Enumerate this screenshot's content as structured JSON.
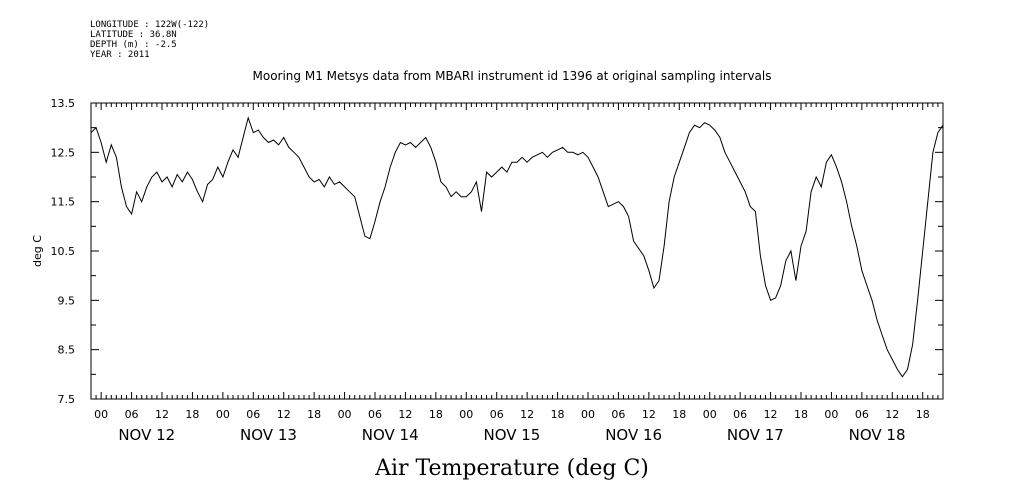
{
  "header": {
    "longitude": "LONGITUDE : 122W(-122)",
    "latitude": "LATITUDE : 36.8N",
    "depth": "DEPTH (m) : -2.5",
    "year": "YEAR : 2011"
  },
  "chart_data": {
    "type": "line",
    "title": "Mooring M1 Metsys data from MBARI instrument id 1396 at original sampling intervals",
    "xlabel": "Air Temperature (deg C)",
    "ylabel": "deg C",
    "ylim": [
      7.5,
      13.5
    ],
    "xlim": [
      -2,
      166
    ],
    "x_unit": "hours since NOV 12 00",
    "y_ticks": [
      "13.5",
      "12.5",
      "11.5",
      "10.5",
      "9.5",
      "8.5",
      "7.5"
    ],
    "x_hour_ticks": [
      "00",
      "06",
      "12",
      "18",
      "00",
      "06",
      "12",
      "18",
      "00",
      "06",
      "12",
      "18",
      "00",
      "06",
      "12",
      "18",
      "00",
      "06",
      "12",
      "18",
      "00",
      "06",
      "12",
      "18",
      "00",
      "06",
      "12",
      "18"
    ],
    "day_labels": [
      "NOV 12",
      "NOV 13",
      "NOV 14",
      "NOV 15",
      "NOV 16",
      "NOV 17",
      "NOV 18"
    ],
    "grid": false,
    "series": [
      {
        "points": [
          [
            -2,
            12.9
          ],
          [
            -1,
            13.0
          ],
          [
            0,
            12.7
          ],
          [
            1,
            12.3
          ],
          [
            2,
            12.65
          ],
          [
            3,
            12.4
          ],
          [
            4,
            11.8
          ],
          [
            5,
            11.4
          ],
          [
            6,
            11.25
          ],
          [
            7,
            11.7
          ],
          [
            8,
            11.5
          ],
          [
            9,
            11.8
          ],
          [
            10,
            12.0
          ],
          [
            11,
            12.1
          ],
          [
            12,
            11.9
          ],
          [
            13,
            12.0
          ],
          [
            14,
            11.8
          ],
          [
            15,
            12.05
          ],
          [
            16,
            11.9
          ],
          [
            17,
            12.1
          ],
          [
            18,
            11.95
          ],
          [
            19,
            11.7
          ],
          [
            20,
            11.5
          ],
          [
            21,
            11.85
          ],
          [
            22,
            11.95
          ],
          [
            23,
            12.2
          ],
          [
            24,
            12.0
          ],
          [
            25,
            12.3
          ],
          [
            26,
            12.55
          ],
          [
            27,
            12.4
          ],
          [
            28,
            12.8
          ],
          [
            29,
            13.2
          ],
          [
            30,
            12.9
          ],
          [
            31,
            12.95
          ],
          [
            32,
            12.8
          ],
          [
            33,
            12.7
          ],
          [
            34,
            12.75
          ],
          [
            35,
            12.65
          ],
          [
            36,
            12.8
          ],
          [
            37,
            12.6
          ],
          [
            38,
            12.5
          ],
          [
            39,
            12.4
          ],
          [
            40,
            12.2
          ],
          [
            41,
            12.0
          ],
          [
            42,
            11.9
          ],
          [
            43,
            11.95
          ],
          [
            44,
            11.8
          ],
          [
            45,
            12.0
          ],
          [
            46,
            11.85
          ],
          [
            47,
            11.9
          ],
          [
            48,
            11.8
          ],
          [
            49,
            11.7
          ],
          [
            50,
            11.6
          ],
          [
            51,
            11.2
          ],
          [
            52,
            10.8
          ],
          [
            53,
            10.75
          ],
          [
            54,
            11.1
          ],
          [
            55,
            11.5
          ],
          [
            56,
            11.8
          ],
          [
            57,
            12.2
          ],
          [
            58,
            12.5
          ],
          [
            59,
            12.7
          ],
          [
            60,
            12.65
          ],
          [
            61,
            12.7
          ],
          [
            62,
            12.6
          ],
          [
            63,
            12.7
          ],
          [
            64,
            12.8
          ],
          [
            65,
            12.6
          ],
          [
            66,
            12.3
          ],
          [
            67,
            11.9
          ],
          [
            68,
            11.8
          ],
          [
            69,
            11.6
          ],
          [
            70,
            11.7
          ],
          [
            71,
            11.6
          ],
          [
            72,
            11.6
          ],
          [
            73,
            11.7
          ],
          [
            74,
            11.9
          ],
          [
            75,
            11.3
          ],
          [
            76,
            12.1
          ],
          [
            77,
            12.0
          ],
          [
            78,
            12.1
          ],
          [
            79,
            12.2
          ],
          [
            80,
            12.1
          ],
          [
            81,
            12.3
          ],
          [
            82,
            12.3
          ],
          [
            83,
            12.4
          ],
          [
            84,
            12.3
          ],
          [
            85,
            12.4
          ],
          [
            86,
            12.45
          ],
          [
            87,
            12.5
          ],
          [
            88,
            12.4
          ],
          [
            89,
            12.5
          ],
          [
            90,
            12.55
          ],
          [
            91,
            12.6
          ],
          [
            92,
            12.5
          ],
          [
            93,
            12.5
          ],
          [
            94,
            12.45
          ],
          [
            95,
            12.5
          ],
          [
            96,
            12.4
          ],
          [
            97,
            12.2
          ],
          [
            98,
            12.0
          ],
          [
            99,
            11.7
          ],
          [
            100,
            11.4
          ],
          [
            101,
            11.45
          ],
          [
            102,
            11.5
          ],
          [
            103,
            11.4
          ],
          [
            104,
            11.2
          ],
          [
            105,
            10.7
          ],
          [
            106,
            10.55
          ],
          [
            107,
            10.4
          ],
          [
            108,
            10.1
          ],
          [
            109,
            9.75
          ],
          [
            110,
            9.9
          ],
          [
            111,
            10.6
          ],
          [
            112,
            11.5
          ],
          [
            113,
            12.0
          ],
          [
            114,
            12.3
          ],
          [
            115,
            12.6
          ],
          [
            116,
            12.9
          ],
          [
            117,
            13.05
          ],
          [
            118,
            13.0
          ],
          [
            119,
            13.1
          ],
          [
            120,
            13.05
          ],
          [
            121,
            12.95
          ],
          [
            122,
            12.8
          ],
          [
            123,
            12.5
          ],
          [
            124,
            12.3
          ],
          [
            125,
            12.1
          ],
          [
            126,
            11.9
          ],
          [
            127,
            11.7
          ],
          [
            128,
            11.4
          ],
          [
            129,
            11.3
          ],
          [
            130,
            10.4
          ],
          [
            131,
            9.8
          ],
          [
            132,
            9.5
          ],
          [
            133,
            9.55
          ],
          [
            134,
            9.8
          ],
          [
            135,
            10.3
          ],
          [
            136,
            10.5
          ],
          [
            137,
            9.9
          ],
          [
            138,
            10.6
          ],
          [
            139,
            10.9
          ],
          [
            140,
            11.7
          ],
          [
            141,
            12.0
          ],
          [
            142,
            11.8
          ],
          [
            143,
            12.3
          ],
          [
            144,
            12.45
          ],
          [
            145,
            12.2
          ],
          [
            146,
            11.9
          ],
          [
            147,
            11.5
          ],
          [
            148,
            11.0
          ],
          [
            149,
            10.6
          ],
          [
            150,
            10.1
          ],
          [
            151,
            9.8
          ],
          [
            152,
            9.5
          ],
          [
            153,
            9.1
          ],
          [
            154,
            8.8
          ],
          [
            155,
            8.5
          ],
          [
            156,
            8.3
          ],
          [
            157,
            8.1
          ],
          [
            158,
            7.95
          ],
          [
            159,
            8.1
          ],
          [
            160,
            8.6
          ],
          [
            161,
            9.5
          ],
          [
            162,
            10.5
          ],
          [
            163,
            11.5
          ],
          [
            164,
            12.5
          ],
          [
            165,
            12.9
          ],
          [
            166,
            13.05
          ]
        ]
      }
    ]
  }
}
